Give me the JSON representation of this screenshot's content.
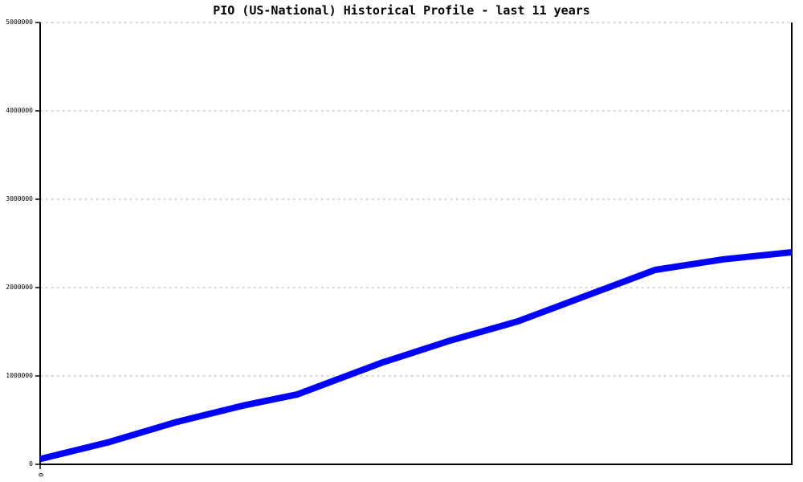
{
  "chart_data": {
    "type": "line",
    "title": "PIO (US-National) Historical Profile - last 11 years",
    "xlabel": "",
    "ylabel": "",
    "xlim": [
      0,
      11
    ],
    "ylim": [
      0,
      5000000
    ],
    "grid": "horizontal-dashed",
    "legend": "none",
    "ytick_values": [
      0,
      1000000,
      2000000,
      3000000,
      4000000,
      5000000
    ],
    "ytick_labels": [
      "0",
      "1000000",
      "2000000",
      "3000000",
      "4000000",
      "5000000"
    ],
    "xtick_labels": [
      "0"
    ],
    "series": [
      {
        "name": "PIO (US-National)",
        "color": "#0000ff",
        "line_width": 8,
        "x": [
          0,
          1,
          2,
          3,
          3.76,
          5,
          6,
          7,
          8,
          9,
          10,
          11
        ],
        "values": [
          60000,
          250000,
          480000,
          670000,
          790000,
          1150000,
          1400000,
          1620000,
          1910000,
          2200000,
          2320000,
          2400000
        ]
      }
    ]
  },
  "colors": {
    "background": "#ffffff",
    "axis": "#000000",
    "grid": "#a8a8a8",
    "text": "#000000",
    "line": "#0000ff"
  }
}
